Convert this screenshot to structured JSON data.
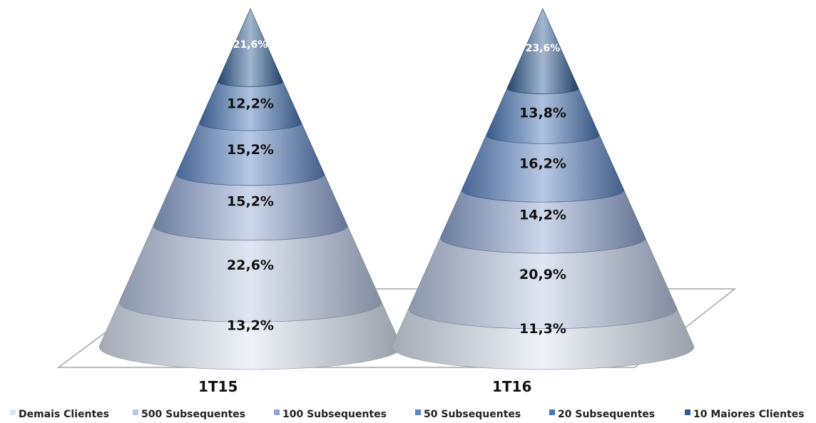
{
  "chart_data": {
    "type": "bar",
    "subtype": "stacked-100-cone-3d",
    "categories": [
      "1T15",
      "1T16"
    ],
    "series": [
      {
        "name": "Demais Clientes",
        "values": [
          13.2,
          11.3
        ],
        "labels": [
          "13,2%",
          "11,3%"
        ],
        "color": "#dbe4f2"
      },
      {
        "name": "500 Subsequentes",
        "values": [
          22.6,
          20.9
        ],
        "labels": [
          "22,6%",
          "20,9%"
        ],
        "color": "#b9c8e3"
      },
      {
        "name": "100 Subsequentes",
        "values": [
          15.2,
          14.2
        ],
        "labels": [
          "15,2%",
          "14,2%"
        ],
        "color": "#8fa6d2"
      },
      {
        "name": "50 Subsequentes",
        "values": [
          15.2,
          16.2
        ],
        "labels": [
          "15,2%",
          "16,2%"
        ],
        "color": "#5f86c4"
      },
      {
        "name": "20 Subsequentes",
        "values": [
          12.2,
          13.8
        ],
        "labels": [
          "12,2%",
          "13,8%"
        ],
        "color": "#4a78b6"
      },
      {
        "name": "10 Maiores Clientes",
        "values": [
          21.6,
          23.6
        ],
        "labels": [
          "21,6%",
          "23,6%"
        ],
        "color": "#305d92"
      }
    ],
    "legend_position": "bottom",
    "grid": false,
    "title": "",
    "xlabel": "",
    "ylabel": ""
  }
}
